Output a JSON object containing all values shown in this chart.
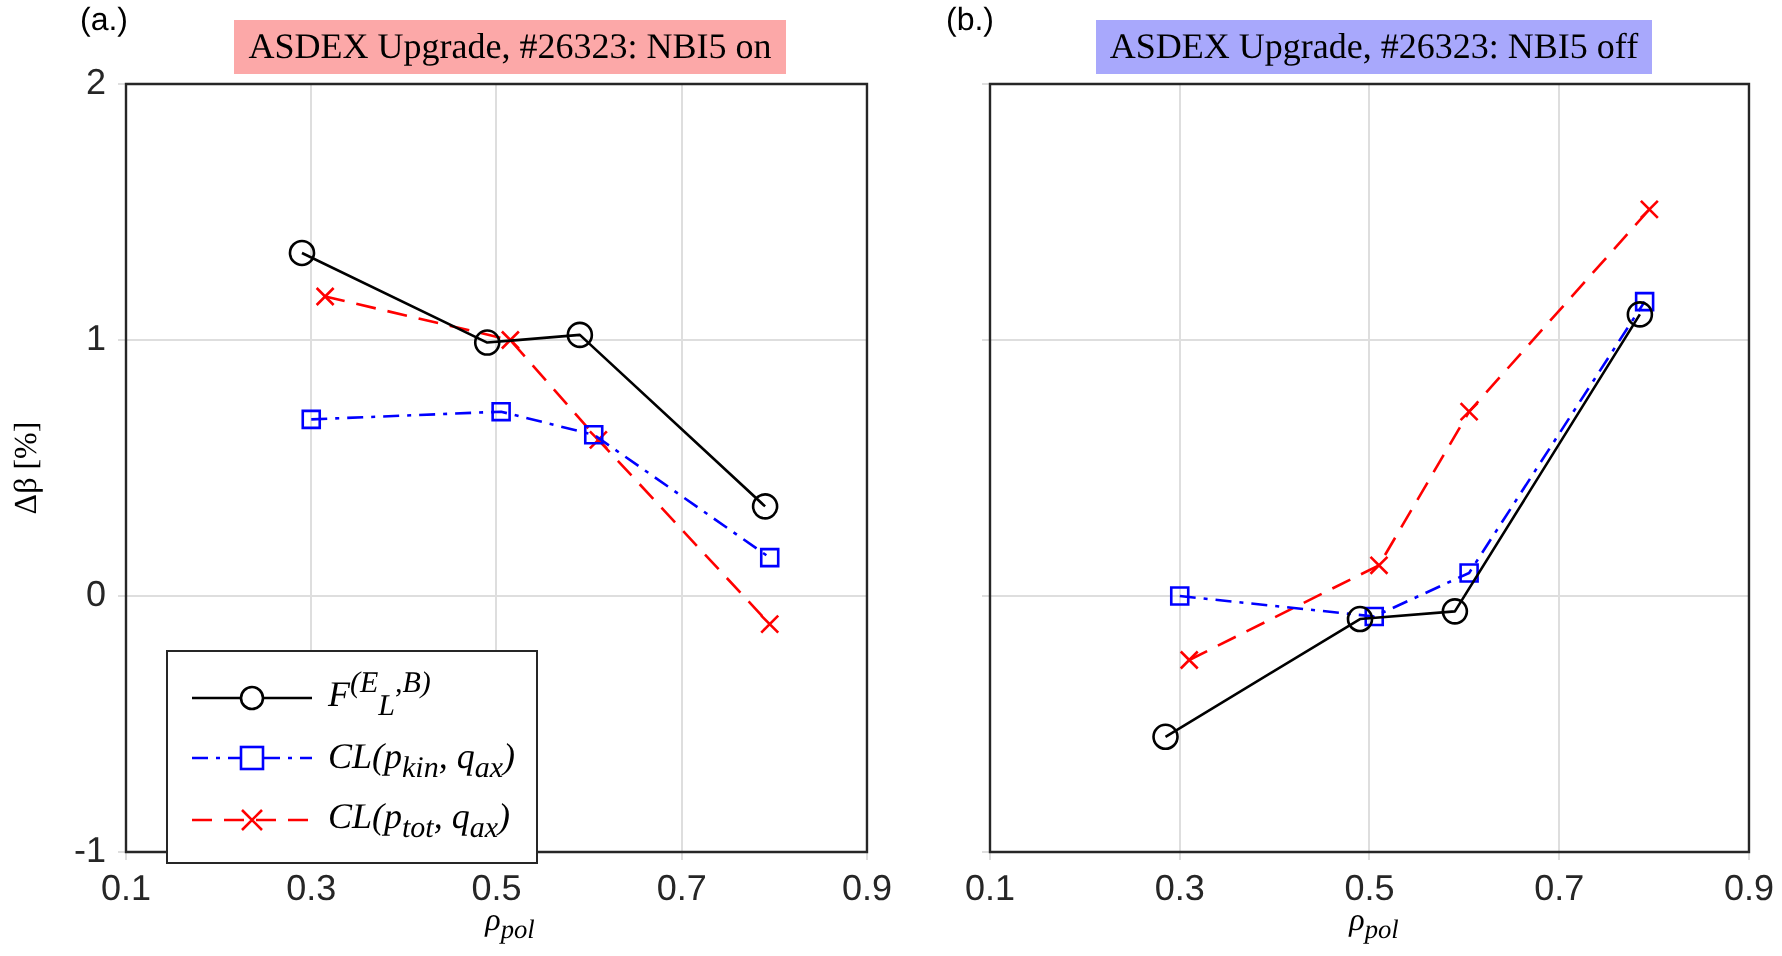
{
  "chart_data": [
    {
      "type": "line",
      "title": "ASDEX Upgrade, #26323: NBI5 on",
      "xlabel": "ρ$_{pol}$",
      "ylabel": "Δβ [%]",
      "annotations": [
        "(a.)"
      ],
      "xlim": [
        0.1,
        0.9
      ],
      "xticks": [
        0.1,
        0.3,
        0.5,
        0.7,
        0.9
      ],
      "ylim": [
        -1,
        2
      ],
      "yticks": [
        -1,
        0,
        1,
        2
      ],
      "grid": true,
      "legend": "bottom left",
      "series": [
        {
          "name": "F$^{(E}$$_{L}$$^{,B)}$",
          "color": "#000000",
          "marker": "circle",
          "line_style": "solid",
          "x": [
            0.29,
            0.49,
            0.59,
            0.79
          ],
          "values": [
            1.34,
            0.99,
            1.02,
            0.35
          ]
        },
        {
          "name": "CL(p$_{kin}$, q$_{ax}$)",
          "color": "#0000ff",
          "marker": "square",
          "line_style": "dashdot",
          "x": [
            0.3,
            0.505,
            0.605,
            0.795
          ],
          "values": [
            0.69,
            0.72,
            0.63,
            0.15
          ]
        },
        {
          "name": "CL(p$_{tot}$, q$_{ax}$)",
          "color": "#ff0000",
          "marker": "cross",
          "line_style": "dashed",
          "x": [
            0.315,
            0.515,
            0.61,
            0.795
          ],
          "values": [
            1.17,
            1.0,
            0.61,
            -0.11
          ]
        }
      ]
    },
    {
      "type": "line",
      "title": "ASDEX Upgrade, #26323: NBI5 off",
      "xlabel": "ρ$_{pol}$",
      "annotations": [
        "(b.)"
      ],
      "xlim": [
        0.1,
        0.9
      ],
      "xticks": [
        0.1,
        0.3,
        0.5,
        0.7,
        0.9
      ],
      "ylim": [
        -1,
        2
      ],
      "yticks": [
        -1,
        0,
        1,
        2
      ],
      "grid": true,
      "tick_labels": "x",
      "series": [
        {
          "color": "#000000",
          "marker": "circle",
          "line_style": "solid",
          "x": [
            0.285,
            0.49,
            0.59,
            0.785
          ],
          "values": [
            -0.55,
            -0.09,
            -0.06,
            1.1
          ]
        },
        {
          "color": "#0000ff",
          "marker": "square",
          "line_style": "dashdot",
          "x": [
            0.3,
            0.505,
            0.605,
            0.79
          ],
          "values": [
            0.0,
            -0.08,
            0.09,
            1.15
          ]
        },
        {
          "color": "#ff0000",
          "marker": "cross",
          "line_style": "dashed",
          "x": [
            0.31,
            0.51,
            0.605,
            0.795
          ],
          "values": [
            -0.25,
            0.12,
            0.72,
            1.51
          ]
        }
      ]
    }
  ]
}
